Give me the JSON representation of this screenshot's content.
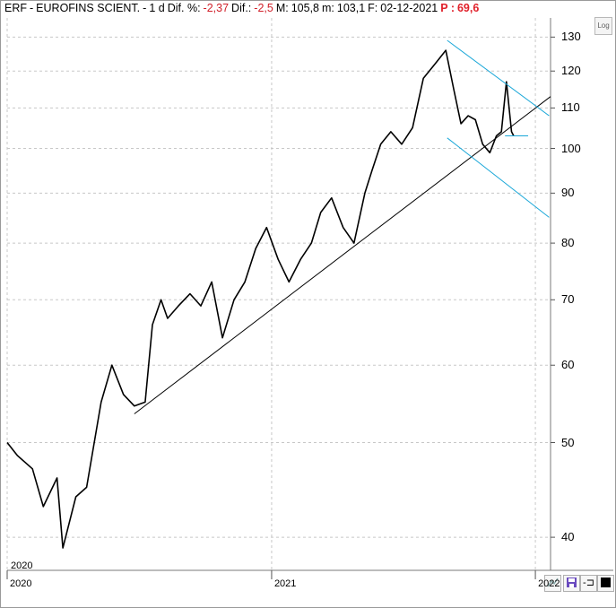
{
  "header": {
    "ticker": "ERF",
    "name": "EUROFINS SCIENT.",
    "sep": "-",
    "period": "1 d",
    "dif_pct_label": "Dif. %:",
    "dif_pct": "-2,37",
    "dif_label": "Dif.:",
    "dif": "-2,5",
    "max_label": "M:",
    "max": "105,8",
    "min_label": "m:",
    "min": "103,1",
    "date_label": "F:",
    "date": "02-12-2021",
    "p_label": "P :",
    "p_value": "69,6"
  },
  "log_button": "Log",
  "year_tag": "2020",
  "toolbar": {
    "zoom_icon": "chart-zoom-icon",
    "save_icon": "save-icon",
    "pin_icon": "pin-icon",
    "color_icon": "color-swatch-icon",
    "pin_glyph": "-⊐"
  },
  "colors": {
    "price": "#000000",
    "trendline": "#000000",
    "channel": "#1aa7d8",
    "grid": "#c8c8c8"
  },
  "chart_data": {
    "type": "line",
    "scale": "log",
    "ylim": [
      37,
      136
    ],
    "y_ticks": [
      40,
      50,
      60,
      70,
      80,
      90,
      100,
      110,
      120,
      130
    ],
    "x_ticks": [
      "2020",
      "2021",
      "2022"
    ],
    "xlim": [
      "2020-01-01",
      "2022-01-22"
    ],
    "series": [
      {
        "x": [
          "2020-01-01",
          "2020-01-15",
          "2020-02-05",
          "2020-02-20",
          "2020-03-10",
          "2020-03-18",
          "2020-04-05",
          "2020-04-20",
          "2020-05-10",
          "2020-05-25",
          "2020-06-10",
          "2020-06-25",
          "2020-07-10",
          "2020-07-20",
          "2020-08-01",
          "2020-08-10",
          "2020-08-25",
          "2020-09-10",
          "2020-09-25",
          "2020-10-10",
          "2020-10-25",
          "2020-11-10",
          "2020-11-25",
          "2020-12-10",
          "2020-12-25",
          "2021-01-10",
          "2021-01-25",
          "2021-02-10",
          "2021-02-25",
          "2021-03-10",
          "2021-03-25",
          "2021-04-10",
          "2021-04-25",
          "2021-05-10",
          "2021-05-20",
          "2021-06-01",
          "2021-06-15",
          "2021-06-30",
          "2021-07-15",
          "2021-07-30",
          "2021-08-15",
          "2021-08-30",
          "2021-09-10",
          "2021-09-20",
          "2021-09-30",
          "2021-10-10",
          "2021-10-20",
          "2021-10-30",
          "2021-11-08",
          "2021-11-15",
          "2021-11-22",
          "2021-11-29",
          "2021-12-02"
        ],
        "close": [
          50,
          48.5,
          47,
          43,
          46,
          39,
          44,
          45,
          55,
          60,
          56,
          54.5,
          55,
          66,
          70,
          67,
          69,
          71,
          69,
          73,
          64,
          70,
          73,
          79,
          83,
          77,
          73,
          77,
          80,
          86,
          89,
          83,
          80,
          90,
          95,
          101,
          104,
          101,
          105,
          118,
          122,
          126,
          115,
          106,
          108,
          107,
          101,
          99,
          103,
          104,
          117,
          104,
          103
        ]
      }
    ]
  }
}
